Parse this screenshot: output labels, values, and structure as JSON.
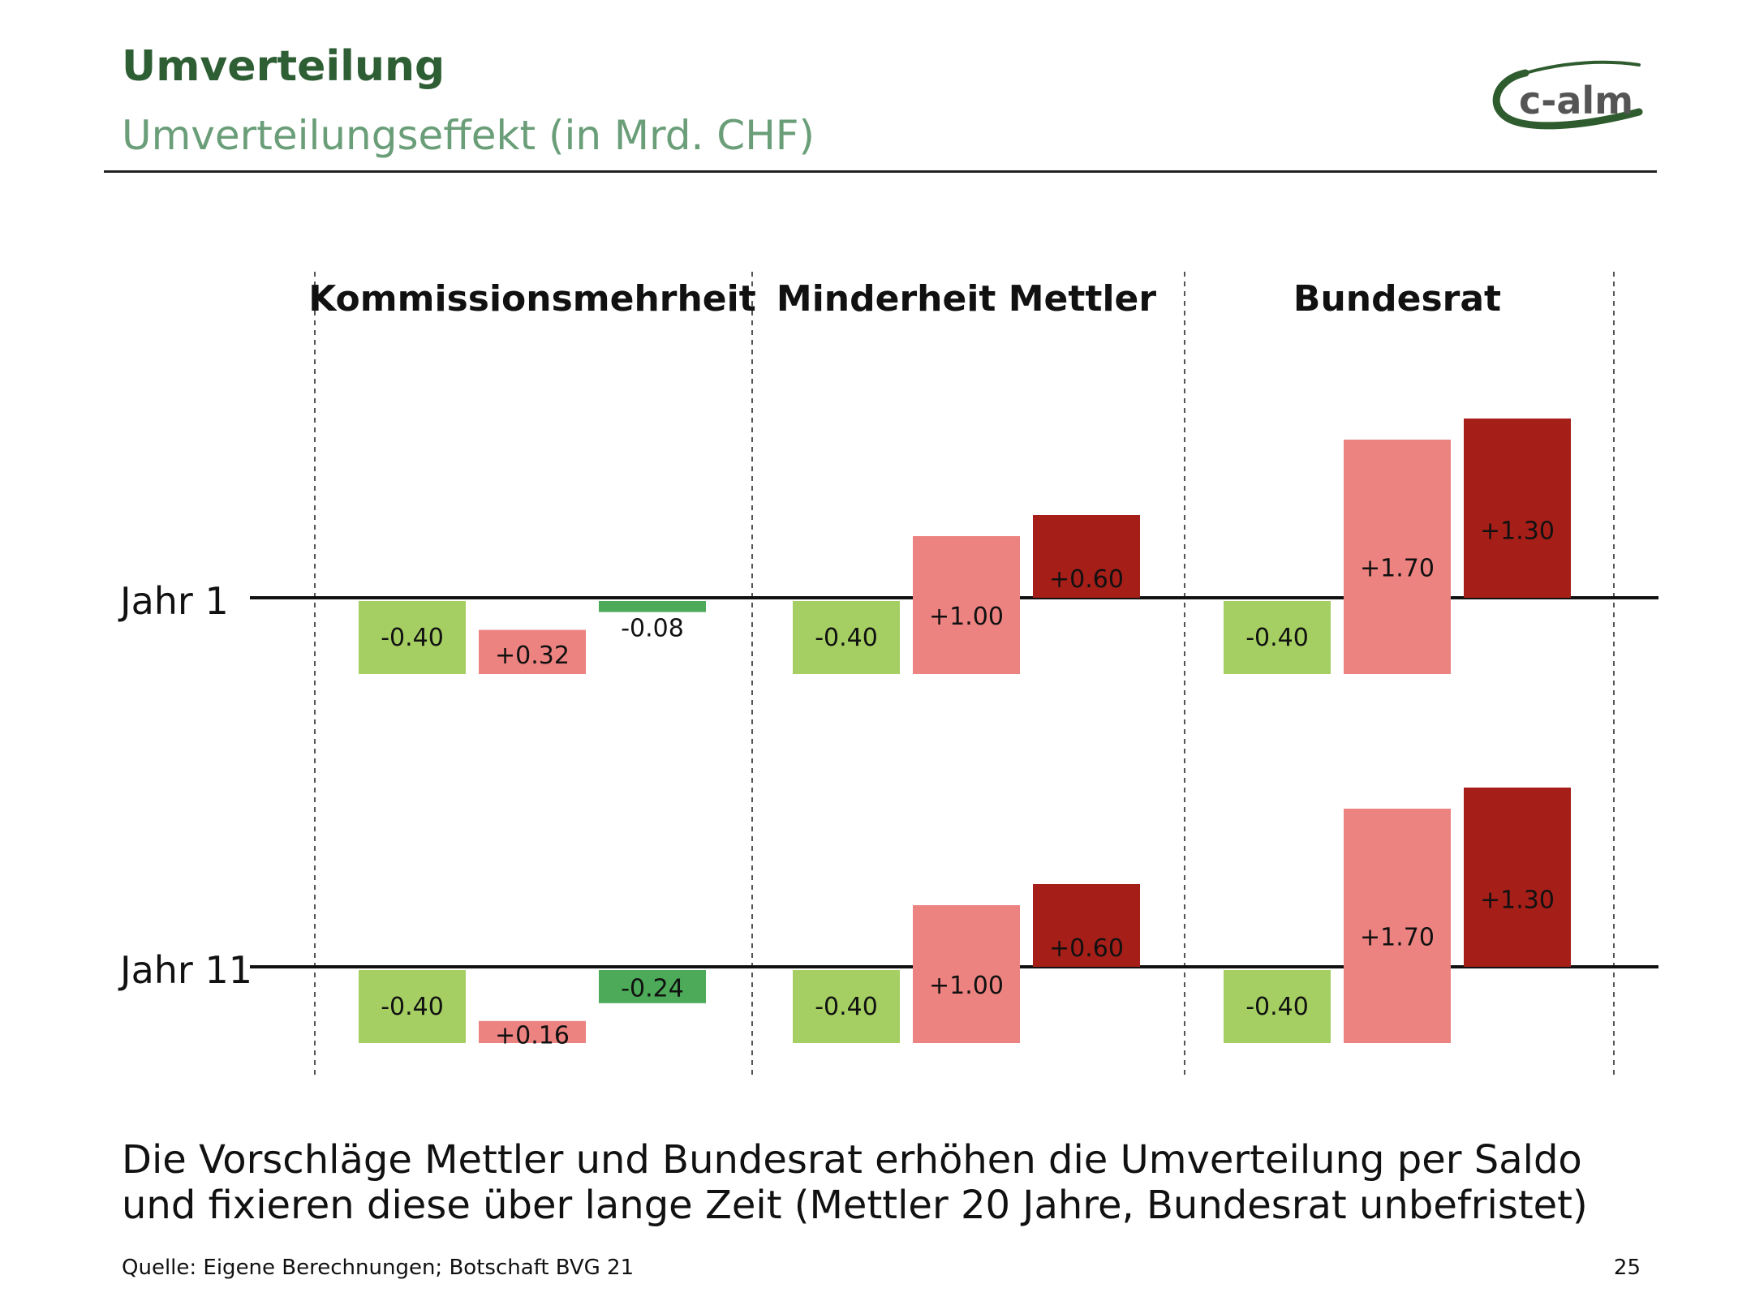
{
  "header": {
    "title": "Umverteilung",
    "subtitle": "Umverteilungseffekt (in Mrd. CHF)",
    "logo_text": "c-alm"
  },
  "chart_data": {
    "type": "bar",
    "groups": [
      "Kommissionsmehrheit",
      "Minderheit Mettler",
      "Bundesrat"
    ],
    "rows": [
      "Jahr 1",
      "Jahr 11"
    ],
    "data": [
      {
        "row": "Jahr 1",
        "group": "Kommissionsmehrheit",
        "values": [
          -0.4,
          0.32,
          -0.08
        ],
        "labels": [
          "-0.40",
          "+0.32",
          "-0.08"
        ],
        "colors": [
          "#a5cf62",
          "#ec8380",
          "#4caa58"
        ]
      },
      {
        "row": "Jahr 1",
        "group": "Minderheit Mettler",
        "values": [
          -0.4,
          1.0,
          0.6
        ],
        "labels": [
          "-0.40",
          "+1.00",
          "+0.60"
        ],
        "colors": [
          "#a5cf62",
          "#ec8380",
          "#a51e18"
        ]
      },
      {
        "row": "Jahr 1",
        "group": "Bundesrat",
        "values": [
          -0.4,
          1.7,
          1.3
        ],
        "labels": [
          "-0.40",
          "+1.70",
          "+1.30"
        ],
        "colors": [
          "#a5cf62",
          "#ec8380",
          "#a51e18"
        ]
      },
      {
        "row": "Jahr 11",
        "group": "Kommissionsmehrheit",
        "values": [
          -0.4,
          0.16,
          -0.24
        ],
        "labels": [
          "-0.40",
          "+0.16",
          "-0.24"
        ],
        "colors": [
          "#a5cf62",
          "#ec8380",
          "#4caa58"
        ]
      },
      {
        "row": "Jahr 11",
        "group": "Minderheit Mettler",
        "values": [
          -0.4,
          1.0,
          0.6
        ],
        "labels": [
          "-0.40",
          "+1.00",
          "+0.60"
        ],
        "colors": [
          "#a5cf62",
          "#ec8380",
          "#a51e18"
        ]
      },
      {
        "row": "Jahr 11",
        "group": "Bundesrat",
        "values": [
          -0.4,
          1.7,
          1.3
        ],
        "labels": [
          "-0.40",
          "+1.70",
          "+1.30"
        ],
        "colors": [
          "#a5cf62",
          "#ec8380",
          "#a51e18"
        ]
      }
    ]
  },
  "takeaway": "Die Vorschläge Mettler und Bundesrat erhöhen die Umverteilung per Saldo und fixieren diese über lange Zeit (Mettler 20 Jahre, Bundesrat unbefristet)",
  "footer": {
    "source": "Quelle: Eigene Berechnungen; Botschaft BVG 21",
    "page": "25"
  }
}
